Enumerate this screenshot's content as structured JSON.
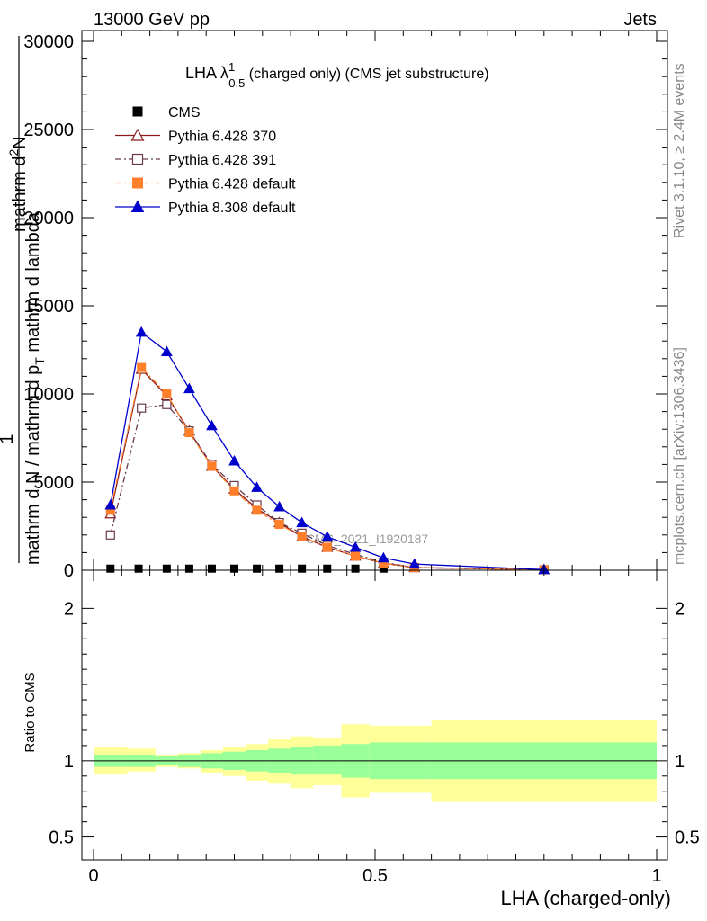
{
  "header": {
    "left": "13000 GeV pp",
    "right": "Jets"
  },
  "side_labels": {
    "top": "Rivet 3.1.10, ≥ 2.4M events",
    "bottom": "mcplots.cern.ch [arXiv:1306.3436]"
  },
  "watermark": "CMS_2021_I1920187",
  "chart_data": [
    {
      "type": "line",
      "title_main": "LHA λ",
      "title_sup": "1",
      "title_sub": "0.5",
      "title_rest": " (charged only) (CMS jet substructure)",
      "ylabel": {
        "one": "1",
        "a1": "mathrm d N / mathrm d p",
        "a1_sub": "T",
        "a2": " mathrm d lambda",
        "b": "mathrm d",
        "b_sup": "2",
        "b_rest": "N"
      },
      "xlim": [
        0,
        1
      ],
      "ylim": [
        0,
        30000
      ],
      "yticks": [
        0,
        5000,
        10000,
        15000,
        20000,
        25000,
        30000
      ],
      "ytick_labels": [
        "0",
        "5000",
        "10000",
        "15000",
        "20000",
        "25000",
        "30000"
      ],
      "legend": "top-left",
      "series": [
        {
          "name": "CMS",
          "color": "#000000",
          "marker": "square",
          "line": "none",
          "x": [
            0.03,
            0.08,
            0.13,
            0.17,
            0.21,
            0.25,
            0.29,
            0.33,
            0.37,
            0.415,
            0.465,
            0.515
          ],
          "y": [
            90,
            90,
            90,
            90,
            90,
            90,
            90,
            90,
            90,
            90,
            90,
            90
          ]
        },
        {
          "name": "Pythia 6.428 370",
          "color": "#8b1a1a",
          "marker": "open-triangle",
          "line": "solid",
          "x": [
            0.03,
            0.085,
            0.13,
            0.17,
            0.21,
            0.25,
            0.29,
            0.33,
            0.37,
            0.415,
            0.465,
            0.515,
            0.57,
            0.8
          ],
          "y": [
            3200,
            11400,
            9900,
            7900,
            5900,
            4600,
            3500,
            2700,
            1900,
            1300,
            800,
            400,
            150,
            30
          ]
        },
        {
          "name": "Pythia 6.428 391",
          "color": "#6b3a4a",
          "marker": "open-square",
          "line": "dashdot",
          "x": [
            0.03,
            0.085,
            0.13,
            0.17,
            0.21,
            0.25,
            0.29,
            0.33,
            0.37,
            0.415,
            0.465,
            0.515,
            0.57,
            0.8
          ],
          "y": [
            2000,
            9200,
            9400,
            7900,
            6000,
            4800,
            3700,
            2700,
            2100,
            1400,
            900,
            450,
            150,
            30
          ]
        },
        {
          "name": "Pythia 6.428 default",
          "color": "#ff7f2a",
          "marker": "filled-square",
          "line": "dashdot",
          "x": [
            0.03,
            0.085,
            0.13,
            0.17,
            0.21,
            0.25,
            0.29,
            0.33,
            0.37,
            0.415,
            0.465,
            0.515,
            0.57,
            0.8
          ],
          "y": [
            3400,
            11500,
            10000,
            7800,
            5900,
            4500,
            3400,
            2600,
            1900,
            1300,
            800,
            400,
            150,
            30
          ]
        },
        {
          "name": "Pythia 8.308 default",
          "color": "#0000cc",
          "marker": "filled-triangle",
          "line": "solid",
          "x": [
            0.03,
            0.085,
            0.13,
            0.17,
            0.21,
            0.25,
            0.29,
            0.33,
            0.37,
            0.415,
            0.465,
            0.515,
            0.57,
            0.8
          ],
          "y": [
            3700,
            13500,
            12400,
            10300,
            8200,
            6200,
            4700,
            3600,
            2700,
            1900,
            1300,
            700,
            350,
            40
          ]
        }
      ]
    },
    {
      "type": "area",
      "ylabel": "Ratio to CMS",
      "xlabel": "LHA (charged-only)",
      "xlim": [
        0,
        1
      ],
      "ylim": [
        0.35,
        2.25
      ],
      "yticks": [
        0.5,
        1,
        2
      ],
      "ytick_labels": [
        "0.5",
        "1",
        "2"
      ],
      "xticks": [
        0,
        0.5,
        1
      ],
      "xtick_labels": [
        "0",
        "0.5",
        "1"
      ],
      "bands": {
        "edges": [
          0,
          0.06,
          0.11,
          0.15,
          0.19,
          0.23,
          0.27,
          0.31,
          0.35,
          0.39,
          0.44,
          0.49,
          0.54,
          0.6,
          1.0
        ],
        "inner_lo": [
          0.96,
          0.96,
          0.97,
          0.96,
          0.95,
          0.94,
          0.93,
          0.92,
          0.91,
          0.91,
          0.89,
          0.88,
          0.88,
          0.88
        ],
        "inner_hi": [
          1.04,
          1.04,
          1.03,
          1.04,
          1.05,
          1.06,
          1.07,
          1.08,
          1.09,
          1.1,
          1.11,
          1.12,
          1.12,
          1.12
        ],
        "outer_lo": [
          0.91,
          0.93,
          0.96,
          0.95,
          0.92,
          0.9,
          0.87,
          0.85,
          0.82,
          0.84,
          0.76,
          0.79,
          0.79,
          0.73
        ],
        "outer_hi": [
          1.09,
          1.08,
          1.04,
          1.05,
          1.07,
          1.09,
          1.11,
          1.14,
          1.16,
          1.15,
          1.24,
          1.23,
          1.23,
          1.27
        ],
        "inner_color": "#99ff99",
        "outer_color": "#ffff99"
      }
    }
  ]
}
